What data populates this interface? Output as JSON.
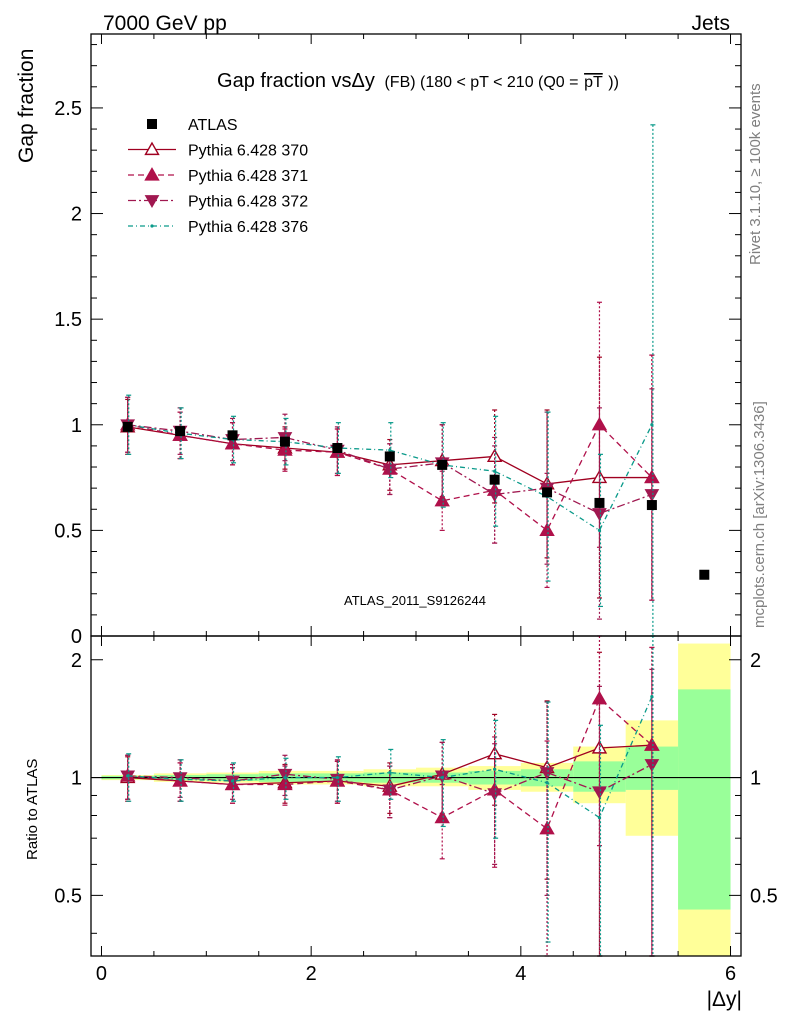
{
  "header": {
    "left": "7000 GeV pp",
    "right": "Jets"
  },
  "side": {
    "rivet": "Rivet 3.1.10, ≥ 100k events",
    "mcplots": "mcplots.cern.ch [arXiv:1306.3436]"
  },
  "chart_data": {
    "type": "scatter",
    "title_main": "Gap fraction vsΔy",
    "title_sub": "(FB) (180 < pT < 210 (Q0 =",
    "title_q0": "pT",
    "title_end": "))",
    "ylabel": "Gap fraction",
    "ratio_ylabel": "Ratio to ATLAS",
    "xlabel": "|Δy|",
    "watermark": "ATLAS_2011_S9126244",
    "xlim": [
      -0.1,
      6.1
    ],
    "ylim": [
      0,
      2.85
    ],
    "ratio_ylim": [
      0.35,
      2.3
    ],
    "yticks": [
      0,
      0.5,
      1,
      1.5,
      2,
      2.5
    ],
    "ytick_labels": [
      "0",
      "0.5",
      "1",
      "1.5",
      "2",
      "2.5"
    ],
    "ratio_yticks": [
      0.5,
      1,
      2
    ],
    "ratio_ytick_labels": [
      "0.5",
      "1",
      "2"
    ],
    "xticks": [
      0,
      2,
      4,
      6
    ],
    "xtick_labels": [
      "0",
      "2",
      "4",
      "6"
    ],
    "x": [
      0.25,
      0.75,
      1.25,
      1.75,
      2.25,
      2.75,
      3.25,
      3.75,
      4.25,
      4.75,
      5.25,
      5.75
    ],
    "data": {
      "name": "ATLAS",
      "values": [
        0.99,
        0.97,
        0.95,
        0.92,
        0.89,
        0.85,
        0.81,
        0.74,
        0.68,
        0.63,
        0.62,
        0.29
      ],
      "color": "#000000"
    },
    "ratio_bands": {
      "edges": [
        0,
        0.5,
        1.0,
        1.5,
        2.0,
        2.5,
        3.0,
        3.5,
        4.0,
        4.5,
        5.0,
        5.5,
        6.0
      ],
      "green": [
        [
          0.99,
          1.01
        ],
        [
          0.985,
          1.015
        ],
        [
          0.98,
          1.02
        ],
        [
          0.975,
          1.025
        ],
        [
          0.975,
          1.025
        ],
        [
          0.97,
          1.03
        ],
        [
          0.97,
          1.03
        ],
        [
          0.96,
          1.04
        ],
        [
          0.95,
          1.05
        ],
        [
          0.92,
          1.1
        ],
        [
          0.93,
          1.2
        ],
        [
          0.46,
          1.68
        ]
      ],
      "yellow": [
        [
          0.985,
          1.015
        ],
        [
          0.975,
          1.025
        ],
        [
          0.97,
          1.03
        ],
        [
          0.96,
          1.04
        ],
        [
          0.96,
          1.04
        ],
        [
          0.95,
          1.05
        ],
        [
          0.95,
          1.06
        ],
        [
          0.93,
          1.07
        ],
        [
          0.92,
          1.09
        ],
        [
          0.86,
          1.2
        ],
        [
          0.71,
          1.4
        ],
        [
          0.35,
          2.2
        ]
      ],
      "green_color": "#99ff99",
      "yellow_color": "#ffff99"
    },
    "series": [
      {
        "name": "Pythia 6.428 370",
        "color": "#a00020",
        "dash": "",
        "marker": "triangle-up-open",
        "values": [
          0.99,
          0.95,
          0.91,
          0.89,
          0.87,
          0.81,
          0.83,
          0.85,
          0.72,
          0.75,
          0.75
        ],
        "errors": [
          0.13,
          0.11,
          0.1,
          0.1,
          0.11,
          0.12,
          0.17,
          0.22,
          0.35,
          0.57,
          0.58
        ],
        "ratio": [
          1.0,
          0.98,
          0.96,
          0.97,
          0.98,
          0.95,
          1.02,
          1.15,
          1.06,
          1.19,
          1.21
        ],
        "ratio_err": [
          0.13,
          0.11,
          0.1,
          0.11,
          0.12,
          0.14,
          0.21,
          0.3,
          0.51,
          0.9,
          0.94
        ]
      },
      {
        "name": "Pythia 6.428 371",
        "color": "#b0104a",
        "dash": "6,4",
        "marker": "triangle-up",
        "values": [
          1.0,
          0.95,
          0.91,
          0.88,
          0.87,
          0.79,
          0.64,
          0.69,
          0.5,
          1.0,
          0.75
        ],
        "errors": [
          0.13,
          0.11,
          0.1,
          0.1,
          0.11,
          0.12,
          0.14,
          0.25,
          0.27,
          0.58,
          0.58
        ],
        "ratio": [
          1.01,
          0.98,
          0.96,
          0.96,
          0.98,
          0.93,
          0.79,
          0.93,
          0.74,
          1.59,
          1.21
        ],
        "ratio_err": [
          0.13,
          0.11,
          0.1,
          0.11,
          0.12,
          0.14,
          0.17,
          0.34,
          0.5,
          0.92,
          0.94
        ]
      },
      {
        "name": "Pythia 6.428 372",
        "color": "#a01850",
        "dash": "8,3,2,3",
        "marker": "triangle-down",
        "values": [
          1.0,
          0.97,
          0.93,
          0.94,
          0.88,
          0.79,
          0.82,
          0.67,
          0.7,
          0.58,
          0.67
        ],
        "errors": [
          0.13,
          0.11,
          0.1,
          0.11,
          0.11,
          0.12,
          0.18,
          0.23,
          0.36,
          0.5,
          0.5
        ],
        "ratio": [
          1.01,
          1.0,
          0.98,
          1.02,
          0.99,
          0.93,
          1.01,
          0.91,
          1.03,
          0.92,
          1.08
        ],
        "ratio_err": [
          0.13,
          0.11,
          0.1,
          0.12,
          0.12,
          0.14,
          0.22,
          0.31,
          0.53,
          0.79,
          0.81
        ]
      },
      {
        "name": "Pythia 6.428 376",
        "color": "#0a9a8a",
        "dash": "5,3,1,3",
        "marker": "dot",
        "values": [
          1.0,
          0.96,
          0.93,
          0.92,
          0.89,
          0.88,
          0.81,
          0.78,
          0.66,
          0.5,
          1.0
        ],
        "errors": [
          0.14,
          0.12,
          0.11,
          0.11,
          0.12,
          0.13,
          0.2,
          0.26,
          0.4,
          0.36,
          1.42
        ],
        "ratio": [
          1.01,
          0.99,
          0.98,
          1.0,
          1.0,
          1.03,
          1.0,
          1.05,
          0.97,
          0.79,
          1.61
        ],
        "ratio_err": [
          0.14,
          0.12,
          0.11,
          0.12,
          0.13,
          0.15,
          0.25,
          0.35,
          0.59,
          0.57,
          2.29
        ]
      }
    ]
  }
}
